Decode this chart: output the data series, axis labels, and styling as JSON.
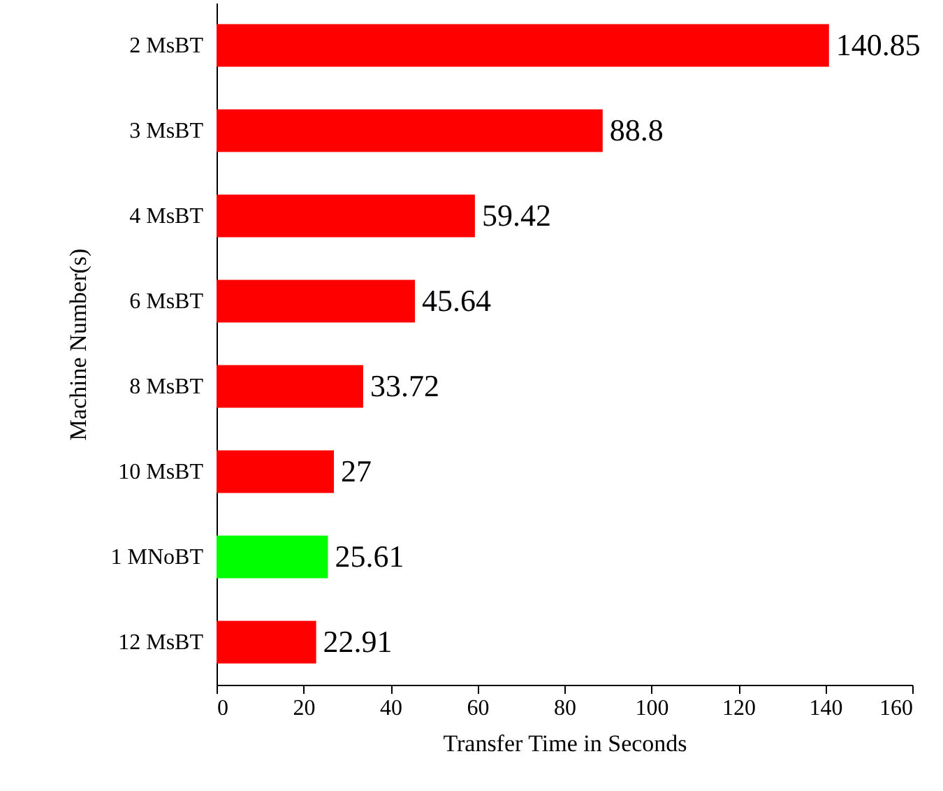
{
  "chart_data": {
    "type": "bar",
    "orientation": "horizontal",
    "xlabel": "Transfer Time in Seconds",
    "ylabel": "Machine Number(s)",
    "categories": [
      "2 MsBT",
      "3 MsBT",
      "4 MsBT",
      "6 MsBT",
      "8 MsBT",
      "10 MsBT",
      "1 MNoBT",
      "12 MsBT"
    ],
    "values": [
      140.85,
      88.8,
      59.42,
      45.64,
      33.72,
      27,
      25.61,
      22.91
    ],
    "colors": [
      "#ff0000",
      "#ff0000",
      "#ff0000",
      "#ff0000",
      "#ff0000",
      "#ff0000",
      "#00ff00",
      "#ff0000"
    ],
    "xlim": [
      0,
      160
    ],
    "xticks": [
      0,
      20,
      40,
      60,
      80,
      100,
      120,
      140,
      160
    ],
    "grid": false,
    "data_labels": true
  }
}
